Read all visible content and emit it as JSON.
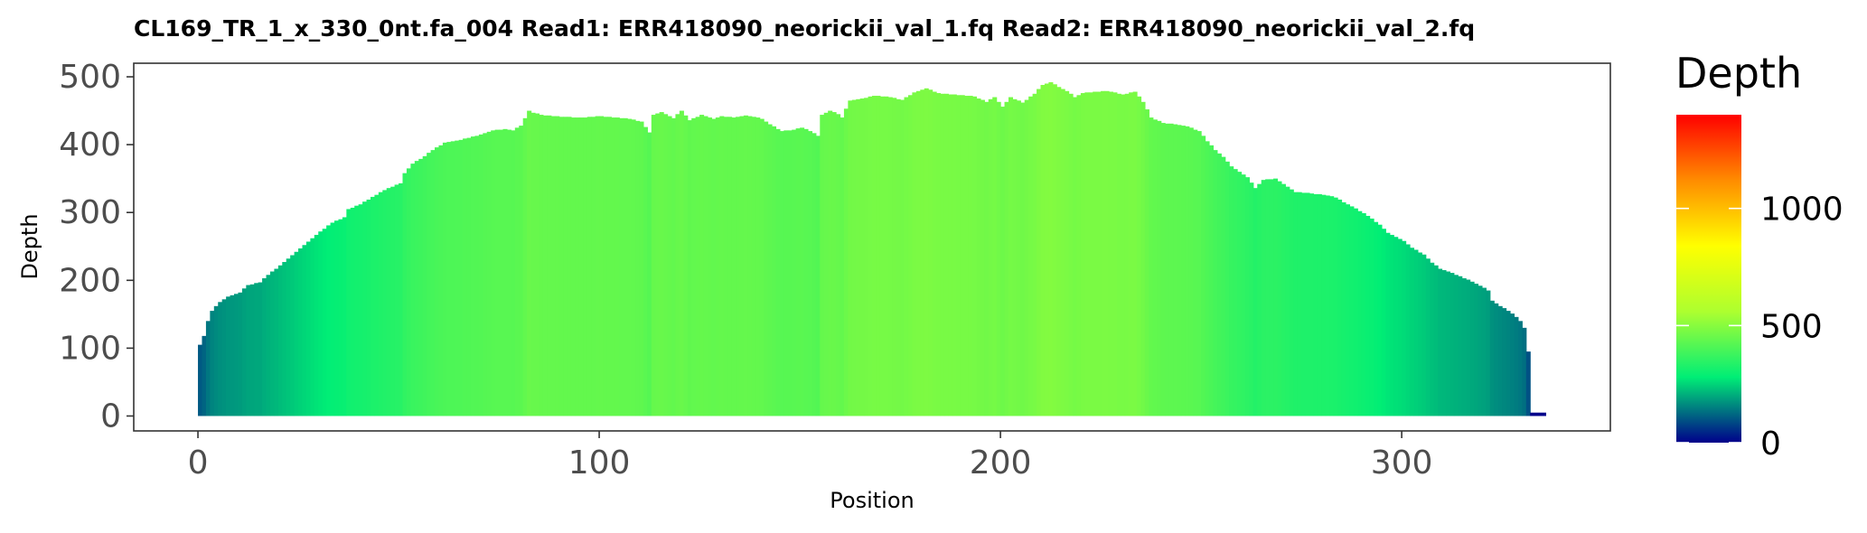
{
  "chart_data": {
    "type": "bar",
    "title": "CL169_TR_1_x_330_0nt.fa_004   Read1: ERR418090_neorickii_val_1.fq   Read2: ERR418090_neorickii_val_2.fq",
    "xlabel": "Position",
    "ylabel": "Depth",
    "xlim": [
      -16,
      352
    ],
    "ylim": [
      -22,
      520
    ],
    "x_ticks": [
      0,
      100,
      200,
      300
    ],
    "y_ticks": [
      0,
      100,
      200,
      300,
      400,
      500
    ],
    "grid": false,
    "legend": {
      "title": "Depth",
      "position": "right",
      "type": "colorbar",
      "range": [
        0,
        1400
      ],
      "ticks": [
        0,
        500,
        1000
      ],
      "colors": [
        "#00008b",
        "#00ee76",
        "#adff2f",
        "#ffff00",
        "#ff8c00",
        "#ff0000"
      ]
    },
    "profile": [
      [
        0,
        105
      ],
      [
        1,
        118
      ],
      [
        2,
        140
      ],
      [
        3,
        155
      ],
      [
        5,
        168
      ],
      [
        7,
        176
      ],
      [
        10,
        182
      ],
      [
        12,
        193
      ],
      [
        15,
        197
      ],
      [
        17,
        208
      ],
      [
        20,
        222
      ],
      [
        22,
        232
      ],
      [
        25,
        247
      ],
      [
        28,
        262
      ],
      [
        30,
        272
      ],
      [
        33,
        285
      ],
      [
        36,
        293
      ],
      [
        37,
        305
      ],
      [
        40,
        312
      ],
      [
        43,
        323
      ],
      [
        46,
        333
      ],
      [
        50,
        343
      ],
      [
        51,
        358
      ],
      [
        53,
        372
      ],
      [
        56,
        383
      ],
      [
        58,
        392
      ],
      [
        61,
        403
      ],
      [
        64,
        406
      ],
      [
        67,
        410
      ],
      [
        70,
        415
      ],
      [
        73,
        421
      ],
      [
        76,
        423
      ],
      [
        78,
        421
      ],
      [
        80,
        428
      ],
      [
        82,
        450
      ],
      [
        83,
        447
      ],
      [
        86,
        443
      ],
      [
        90,
        441
      ],
      [
        95,
        440
      ],
      [
        100,
        442
      ],
      [
        103,
        440
      ],
      [
        107,
        438
      ],
      [
        110,
        434
      ],
      [
        112,
        418
      ],
      [
        113,
        444
      ],
      [
        115,
        448
      ],
      [
        118,
        439
      ],
      [
        120,
        450
      ],
      [
        122,
        436
      ],
      [
        125,
        444
      ],
      [
        128,
        438
      ],
      [
        130,
        442
      ],
      [
        133,
        440
      ],
      [
        136,
        443
      ],
      [
        138,
        441
      ],
      [
        140,
        438
      ],
      [
        142,
        430
      ],
      [
        145,
        420
      ],
      [
        148,
        422
      ],
      [
        150,
        425
      ],
      [
        152,
        420
      ],
      [
        154,
        413
      ],
      [
        155,
        444
      ],
      [
        157,
        450
      ],
      [
        159,
        445
      ],
      [
        160,
        440
      ],
      [
        162,
        465
      ],
      [
        165,
        468
      ],
      [
        168,
        472
      ],
      [
        172,
        470
      ],
      [
        175,
        466
      ],
      [
        178,
        477
      ],
      [
        181,
        483
      ],
      [
        184,
        476
      ],
      [
        187,
        474
      ],
      [
        190,
        473
      ],
      [
        193,
        471
      ],
      [
        196,
        463
      ],
      [
        198,
        470
      ],
      [
        200,
        456
      ],
      [
        202,
        470
      ],
      [
        205,
        462
      ],
      [
        208,
        475
      ],
      [
        210,
        488
      ],
      [
        212,
        492
      ],
      [
        214,
        485
      ],
      [
        216,
        479
      ],
      [
        218,
        470
      ],
      [
        220,
        476
      ],
      [
        223,
        478
      ],
      [
        226,
        479
      ],
      [
        230,
        474
      ],
      [
        233,
        478
      ],
      [
        235,
        463
      ],
      [
        237,
        440
      ],
      [
        240,
        432
      ],
      [
        243,
        430
      ],
      [
        246,
        427
      ],
      [
        249,
        420
      ],
      [
        251,
        405
      ],
      [
        253,
        392
      ],
      [
        255,
        382
      ],
      [
        257,
        368
      ],
      [
        259,
        360
      ],
      [
        261,
        352
      ],
      [
        263,
        336
      ],
      [
        265,
        348
      ],
      [
        268,
        350
      ],
      [
        270,
        342
      ],
      [
        273,
        330
      ],
      [
        277,
        328
      ],
      [
        281,
        325
      ],
      [
        283,
        322
      ],
      [
        285,
        315
      ],
      [
        288,
        306
      ],
      [
        291,
        295
      ],
      [
        294,
        282
      ],
      [
        296,
        270
      ],
      [
        298,
        264
      ],
      [
        300,
        258
      ],
      [
        302,
        248
      ],
      [
        305,
        238
      ],
      [
        307,
        226
      ],
      [
        309,
        217
      ],
      [
        311,
        213
      ],
      [
        313,
        208
      ],
      [
        315,
        203
      ],
      [
        317,
        198
      ],
      [
        319,
        192
      ],
      [
        321,
        185
      ],
      [
        322,
        170
      ],
      [
        324,
        162
      ],
      [
        326,
        155
      ],
      [
        328,
        146
      ],
      [
        329,
        140
      ],
      [
        330,
        130
      ],
      [
        331,
        95
      ],
      [
        332,
        0
      ]
    ],
    "tail": {
      "from": 332,
      "to": 336,
      "value": 5
    }
  }
}
